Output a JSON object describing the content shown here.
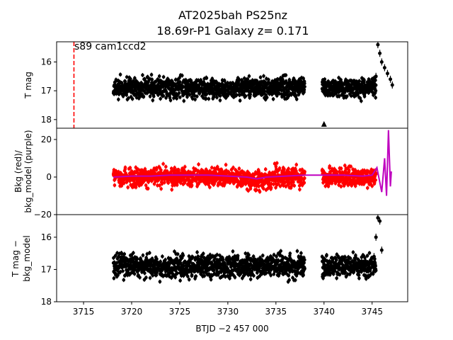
{
  "chart_data": {
    "type": "scatter",
    "title": [
      "AT2025bah  PS25nz",
      "18.69r-P1 Galaxy z= 0.171"
    ],
    "xlabel": "BTJD −2 457 000",
    "xlim": [
      3712.2,
      3748.7
    ],
    "x_ticks": [
      "3715",
      "3720",
      "3725",
      "3730",
      "3735",
      "3740",
      "3745"
    ],
    "x_tick_values": [
      3715,
      3720,
      3725,
      3730,
      3735,
      3740,
      3745
    ],
    "panels": [
      {
        "ylabel": [
          "T mag"
        ],
        "ylim": [
          15.3,
          18.3
        ],
        "inverted": true,
        "y_ticks": [
          "16",
          "17",
          "18"
        ],
        "y_tick_values": [
          16,
          17,
          18
        ],
        "annotation": {
          "text": "s89 cam1ccd2",
          "x": 3714,
          "color": "#ff0000"
        },
        "series": [
          {
            "color": "#000000",
            "segments": [
              [
                3718.1,
                3738.0
              ],
              [
                3739.8,
                3745.4
              ]
            ],
            "baseline": 16.9,
            "scatter": 0.45
          },
          {
            "color": "#000000",
            "flare_x": [
              3745.4,
              3745.6,
              3745.8,
              3746.0,
              3746.3,
              3746.6,
              3746.9,
              3747.1
            ],
            "flare_y": [
              16.5,
              15.4,
              15.7,
              16.0,
              16.2,
              16.4,
              16.6,
              16.8
            ]
          }
        ],
        "outlier": {
          "x": 3740.0,
          "y": 18.2,
          "marker": "triangle"
        }
      },
      {
        "ylabel": [
          "Bkg (red)/",
          "bkg_model (purple)"
        ],
        "ylim": [
          -20,
          26
        ],
        "inverted": false,
        "y_ticks": [
          "20",
          "0",
          "−20"
        ],
        "y_tick_values": [
          20,
          0,
          -20
        ],
        "series": [
          {
            "name": "Bkg",
            "color": "#ff0000",
            "segments": [
              [
                3718.1,
                3738.0
              ],
              [
                3739.8,
                3745.4
              ]
            ],
            "baseline": 0,
            "scatter": 7
          },
          {
            "name": "bkg_model",
            "color": "#bf00bf",
            "x": [
              3718.1,
              3720,
              3722,
              3724,
              3726,
              3728,
              3730,
              3732,
              3733,
              3734,
              3736,
              3738,
              3740,
              3742,
              3744,
              3745,
              3745.5,
              3746.0,
              3746.3,
              3746.5,
              3746.7,
              3746.9,
              3747.0
            ],
            "y": [
              0,
              0.5,
              0.5,
              1,
              1,
              1,
              0.5,
              0,
              -1,
              0,
              0.5,
              1,
              1,
              1,
              0.5,
              1,
              5,
              -8,
              10,
              -10,
              25,
              -5,
              3
            ]
          }
        ]
      },
      {
        "ylabel": [
          "T mag −",
          "bkg_model"
        ],
        "ylim": [
          15.3,
          18.0
        ],
        "inverted": true,
        "y_ticks": [
          "16",
          "17",
          "18"
        ],
        "y_tick_values": [
          16,
          17,
          18
        ],
        "series": [
          {
            "color": "#000000",
            "segments": [
              [
                3718.1,
                3738.0
              ],
              [
                3739.8,
                3745.4
              ]
            ],
            "baseline": 16.9,
            "scatter": 0.45
          },
          {
            "color": "#000000",
            "flare_x": [
              3745.2,
              3745.4,
              3745.6,
              3745.8,
              3746.0
            ],
            "flare_y": [
              16.6,
              16.0,
              15.4,
              15.5,
              16.4
            ]
          }
        ]
      }
    ]
  }
}
